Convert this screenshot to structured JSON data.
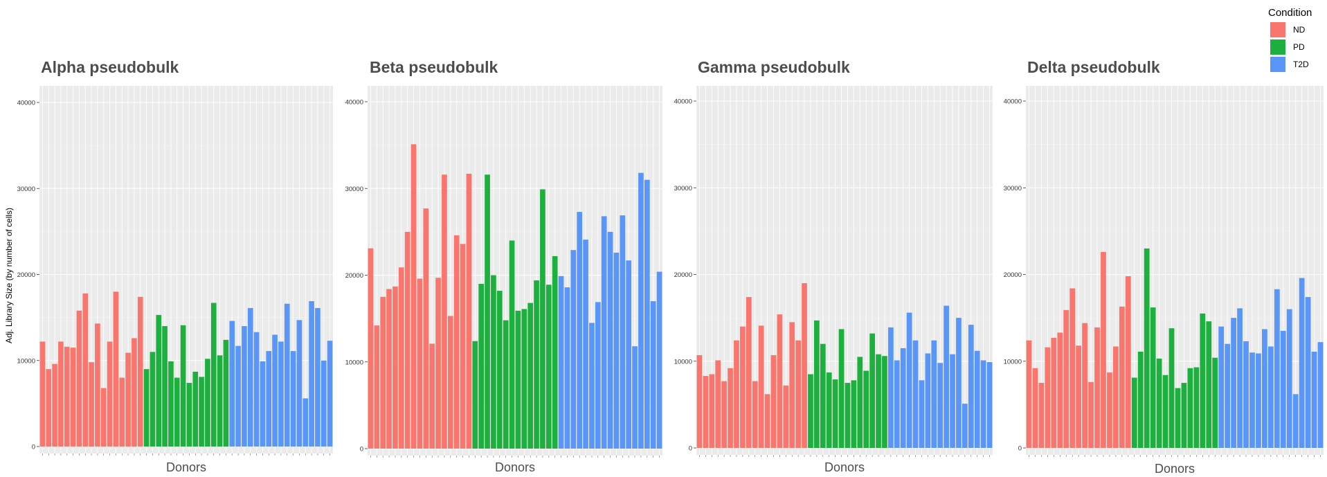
{
  "legend": {
    "title": "Condition",
    "items": [
      {
        "label": "ND",
        "color": "#F8766D"
      },
      {
        "label": "PD",
        "color": "#1DB03E"
      },
      {
        "label": "T2D",
        "color": "#5A96F7"
      }
    ]
  },
  "chart_data": [
    {
      "type": "bar",
      "title": "Alpha pseudobulk",
      "xlabel": "Donors",
      "ylabel": "Adj. Library Size (by number of cells)",
      "ylim": [
        0,
        42000
      ],
      "yticks": [
        0,
        10000,
        20000,
        30000,
        40000
      ],
      "grid": true,
      "series": [
        {
          "name": "ND",
          "values": [
            12200,
            9000,
            9600,
            12200,
            11600,
            11500,
            15800,
            17800,
            9800,
            14300,
            6800,
            12200,
            18000,
            8000,
            10900,
            12600,
            17400
          ]
        },
        {
          "name": "PD",
          "values": [
            9000,
            11000,
            15300,
            14000,
            9900,
            8000,
            14100,
            7400,
            8700,
            8100,
            10200,
            16700,
            10600,
            12400
          ]
        },
        {
          "name": "T2D",
          "values": [
            14600,
            11700,
            14000,
            16100,
            13300,
            9900,
            11100,
            13000,
            12200,
            16600,
            11100,
            14700,
            5600,
            16900,
            16100,
            10000,
            12300
          ]
        }
      ]
    },
    {
      "type": "bar",
      "title": "Beta pseudobulk",
      "xlabel": "Donors",
      "ylabel": "",
      "ylim": [
        0,
        42000
      ],
      "yticks": [
        0,
        10000,
        20000,
        30000,
        40000
      ],
      "grid": true,
      "series": [
        {
          "name": "ND",
          "values": [
            23100,
            14200,
            17500,
            18400,
            18700,
            20900,
            25000,
            35100,
            19600,
            27700,
            12100,
            19700,
            31600,
            15300,
            24600,
            23600,
            31700
          ]
        },
        {
          "name": "PD",
          "values": [
            12400,
            19000,
            31600,
            20000,
            18200,
            14800,
            24000,
            15900,
            16100,
            16800,
            19400,
            29900,
            18900,
            22200
          ]
        },
        {
          "name": "T2D",
          "values": [
            19900,
            18600,
            22900,
            27300,
            24100,
            14500,
            16900,
            26800,
            25000,
            22600,
            26900,
            21700,
            11800,
            31800,
            31000,
            17000,
            20400
          ]
        }
      ]
    },
    {
      "type": "bar",
      "title": "Gamma pseudobulk",
      "xlabel": "Donors",
      "ylabel": "",
      "ylim": [
        0,
        42000
      ],
      "yticks": [
        0,
        10000,
        20000,
        30000,
        40000
      ],
      "grid": true,
      "series": [
        {
          "name": "ND",
          "values": [
            10700,
            8300,
            8500,
            10100,
            7700,
            9200,
            12400,
            14000,
            17400,
            7700,
            14100,
            6200,
            10700,
            15400,
            7200,
            14500,
            12400,
            19000
          ]
        },
        {
          "name": "PD",
          "values": [
            8500,
            14700,
            12000,
            8700,
            7900,
            13700,
            7500,
            7800,
            10500,
            8900,
            13200,
            10800,
            10600
          ]
        },
        {
          "name": "T2D",
          "values": [
            13900,
            10100,
            11500,
            15600,
            12400,
            7800,
            10900,
            12400,
            9800,
            16400,
            10800,
            15000,
            5100,
            14200,
            11200,
            10100,
            9900
          ]
        }
      ]
    },
    {
      "type": "bar",
      "title": "Delta pseudobulk",
      "xlabel": "Donors",
      "ylabel": "",
      "ylim": [
        0,
        42000
      ],
      "yticks": [
        0,
        10000,
        20000,
        30000,
        40000
      ],
      "grid": true,
      "series": [
        {
          "name": "ND",
          "values": [
            12400,
            9200,
            7500,
            11600,
            12700,
            13300,
            15900,
            18400,
            11800,
            14400,
            7600,
            13900,
            22600,
            8700,
            11700,
            16300,
            19800
          ]
        },
        {
          "name": "PD",
          "values": [
            8100,
            11100,
            23000,
            16200,
            10300,
            8400,
            13800,
            6900,
            7500,
            9200,
            9300,
            15500,
            14600,
            10400
          ]
        },
        {
          "name": "T2D",
          "values": [
            14000,
            12000,
            15000,
            16100,
            12300,
            11000,
            10900,
            13700,
            11700,
            18300,
            13500,
            16000,
            6200,
            19600,
            17400,
            11100,
            12200
          ]
        }
      ]
    }
  ]
}
